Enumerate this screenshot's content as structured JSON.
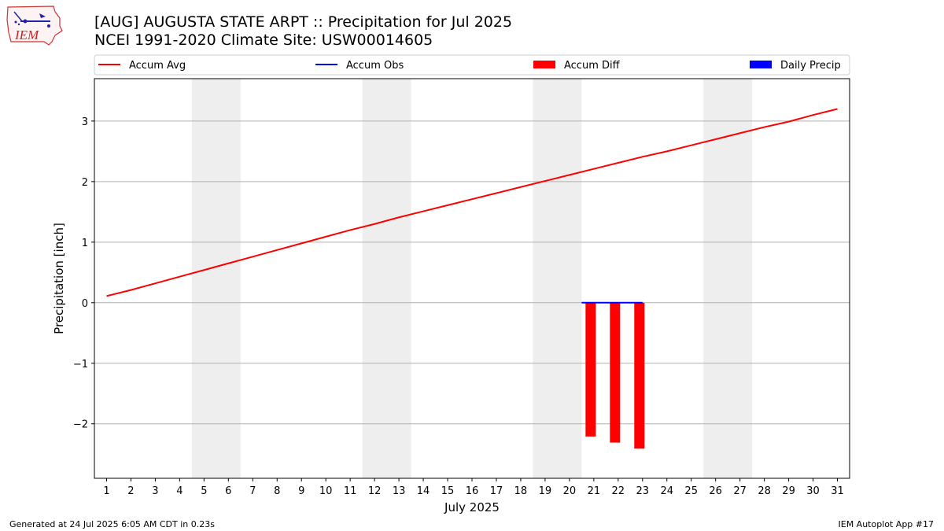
{
  "logo": {
    "text": "IEM"
  },
  "footer": {
    "generated": "Generated at 24 Jul 2025 6:05 AM CDT in 0.23s",
    "app": "IEM Autoplot App #17"
  },
  "chart_data": {
    "type": "bar",
    "title": "[AUG] AUGUSTA STATE ARPT :: Precipitation for Jul 2025",
    "subtitle": "NCEI 1991-2020 Climate Site: USW00014605",
    "xlabel": "July 2025",
    "ylabel": "Precipitation [inch]",
    "xlim": [
      0.5,
      31.5
    ],
    "ylim": [
      -2.9,
      3.7
    ],
    "yticks": [
      -2,
      -1,
      0,
      1,
      2,
      3
    ],
    "ytick_labels": [
      "−2",
      "−1",
      "0",
      "1",
      "2",
      "3"
    ],
    "xticks": [
      1,
      2,
      3,
      4,
      5,
      6,
      7,
      8,
      9,
      10,
      11,
      12,
      13,
      14,
      15,
      16,
      17,
      18,
      19,
      20,
      21,
      22,
      23,
      24,
      25,
      26,
      27,
      28,
      29,
      30,
      31
    ],
    "grid": "horizontal",
    "weekend_shading": [
      [
        4.5,
        6.5
      ],
      [
        11.5,
        13.5
      ],
      [
        18.5,
        20.5
      ],
      [
        25.5,
        27.5
      ]
    ],
    "legend": {
      "position": "top",
      "entries": [
        {
          "name": "Accum Avg",
          "kind": "line",
          "color": "#ff0000"
        },
        {
          "name": "Accum Obs",
          "kind": "line",
          "color": "#0000ff"
        },
        {
          "name": "Accum Diff",
          "kind": "patch",
          "color": "#ff0000"
        },
        {
          "name": "Daily Precip",
          "kind": "patch",
          "color": "#0000ff"
        }
      ]
    },
    "series": [
      {
        "name": "Accum Avg",
        "type": "line",
        "color": "#ff0000",
        "x": [
          1,
          2,
          3,
          4,
          5,
          6,
          7,
          8,
          9,
          10,
          11,
          12,
          13,
          14,
          15,
          16,
          17,
          18,
          19,
          20,
          21,
          22,
          23,
          24,
          25,
          26,
          27,
          28,
          29,
          30,
          31
        ],
        "values": [
          0.11,
          0.21,
          0.32,
          0.43,
          0.54,
          0.65,
          0.76,
          0.87,
          0.98,
          1.09,
          1.2,
          1.3,
          1.41,
          1.51,
          1.61,
          1.71,
          1.81,
          1.91,
          2.01,
          2.11,
          2.21,
          2.31,
          2.41,
          2.5,
          2.6,
          2.7,
          2.8,
          2.9,
          2.99,
          3.1,
          3.2
        ]
      },
      {
        "name": "Accum Obs",
        "type": "line",
        "color": "#0000ff",
        "x": [
          21,
          22,
          23
        ],
        "values": [
          0.0,
          0.0,
          0.0
        ]
      },
      {
        "name": "Accum Diff",
        "type": "bar",
        "color": "#ff0000",
        "x": [
          21,
          22,
          23
        ],
        "values": [
          -2.21,
          -2.31,
          -2.41
        ]
      },
      {
        "name": "Daily Precip",
        "type": "bar",
        "color": "#0000ff",
        "x": [
          21,
          22,
          23
        ],
        "values": [
          0.0,
          0.0,
          0.0
        ]
      }
    ]
  }
}
